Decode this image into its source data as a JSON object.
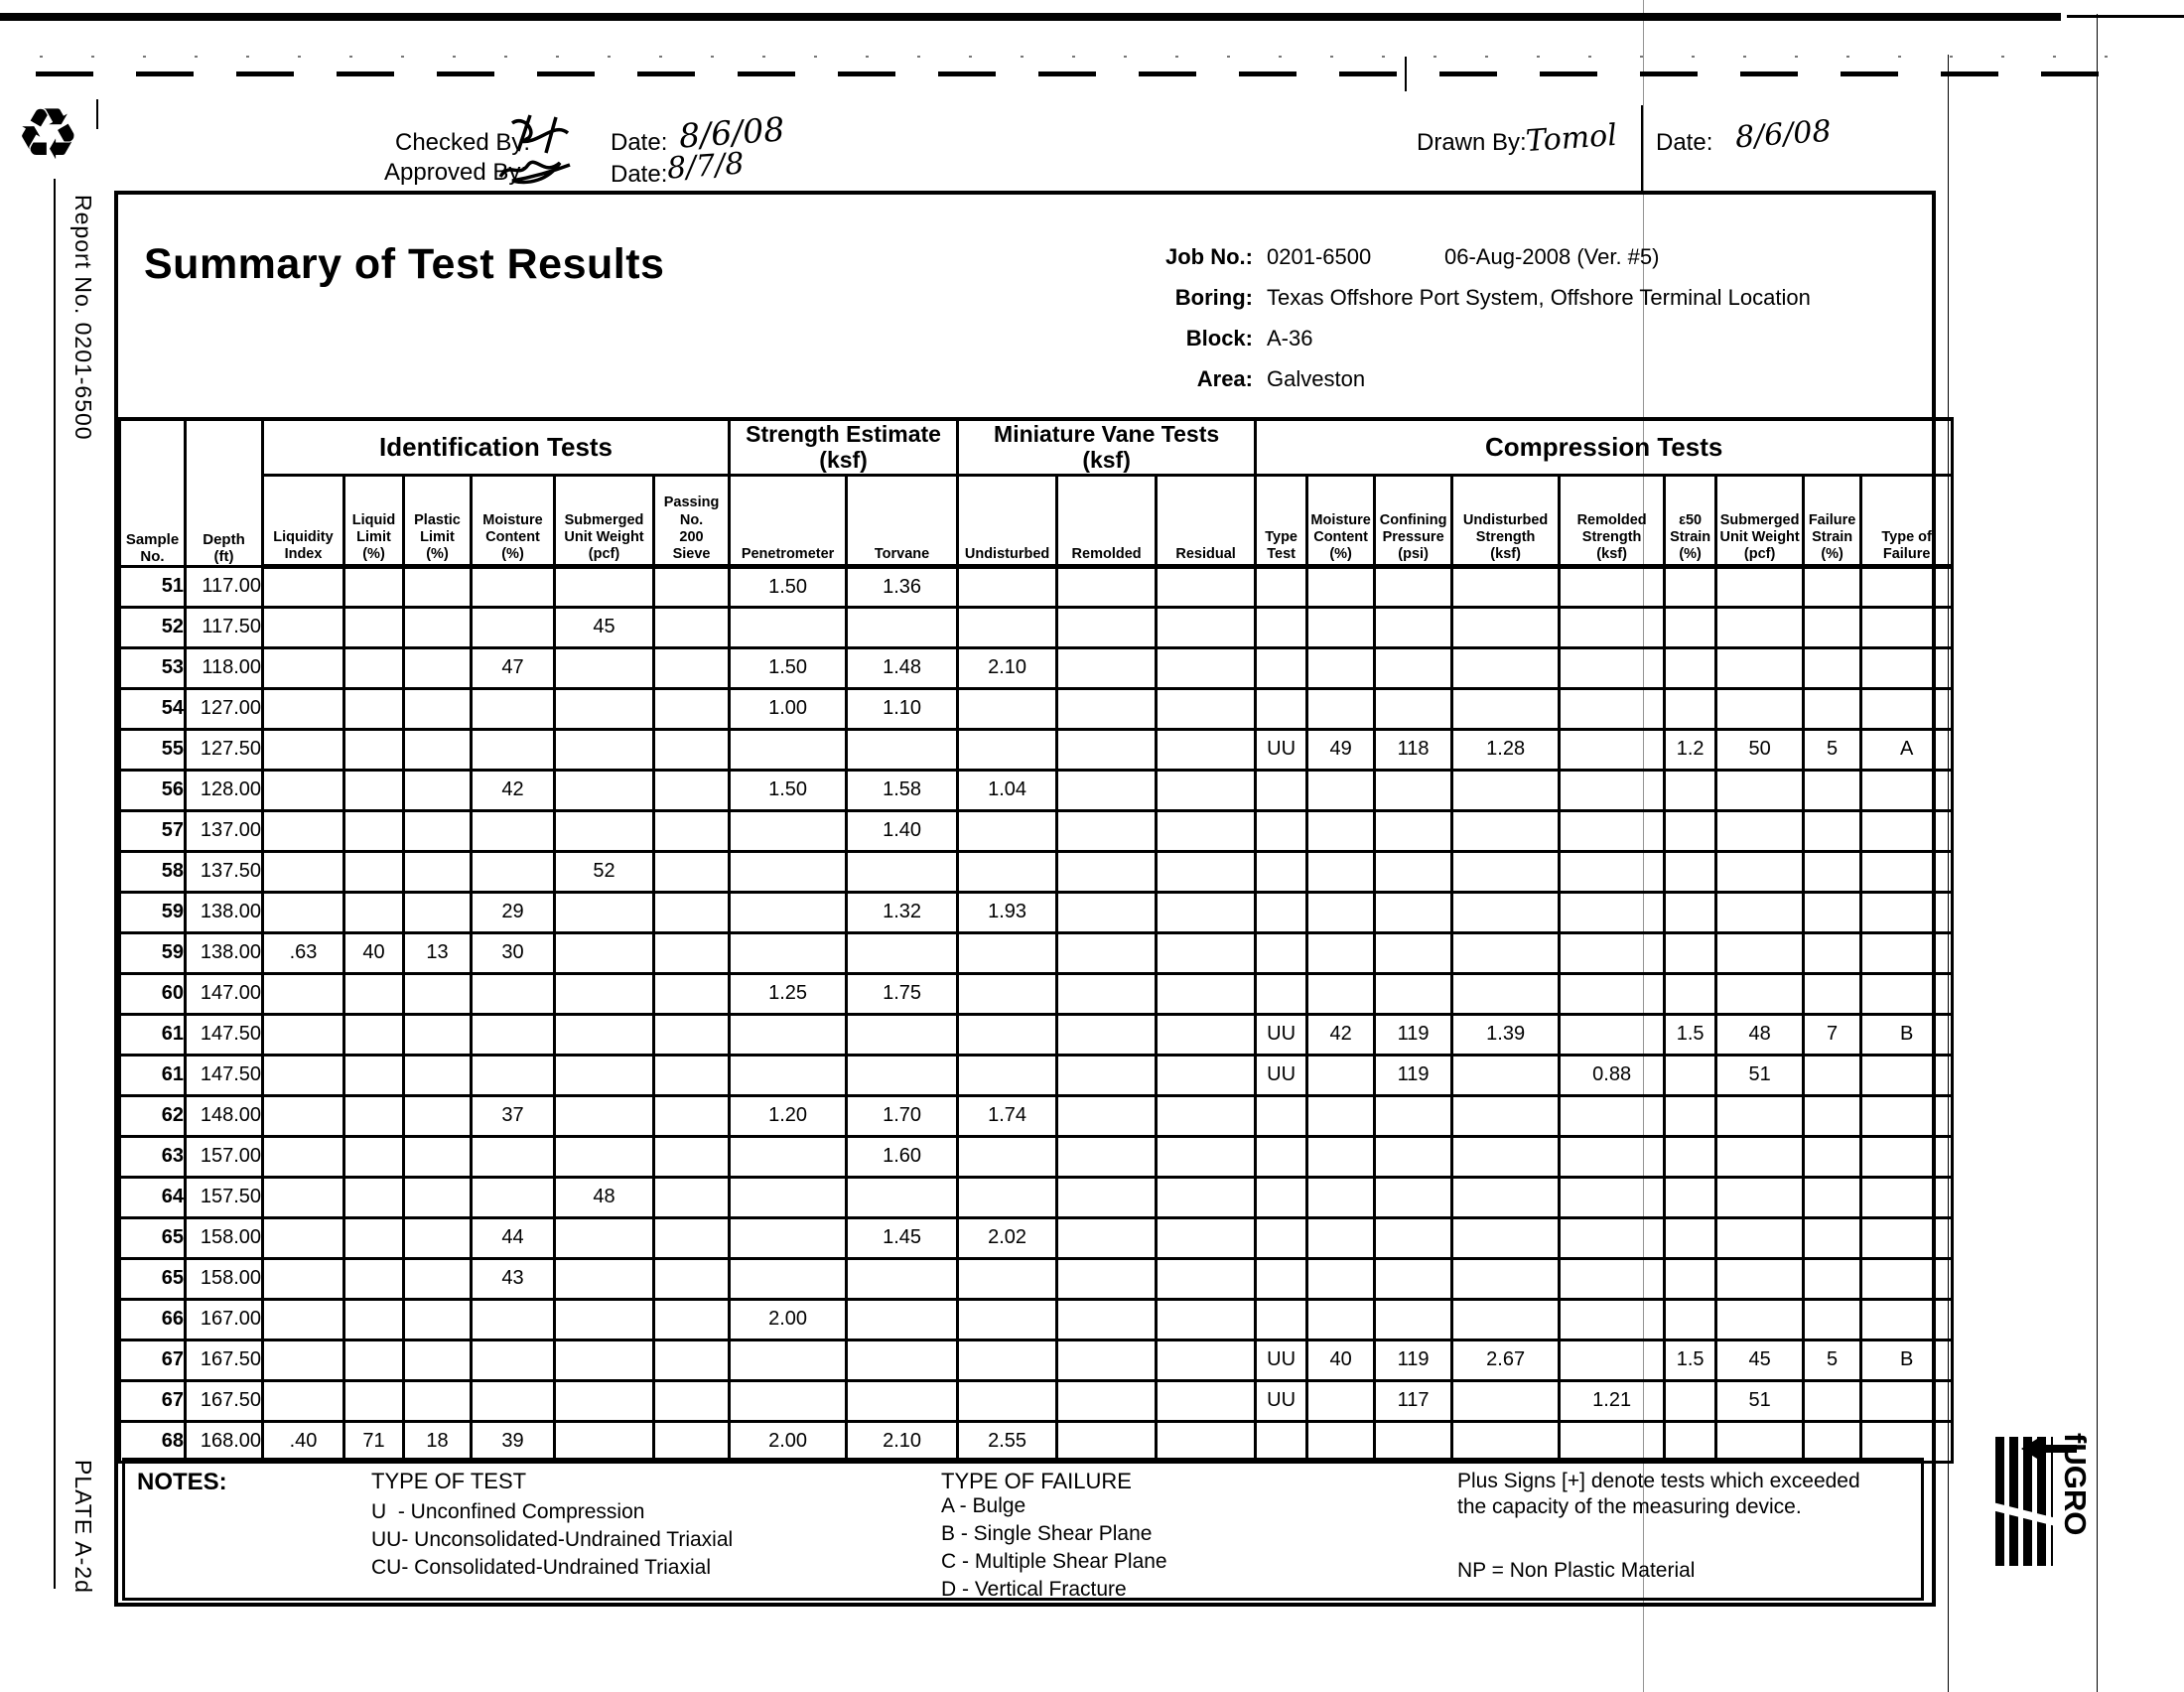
{
  "icons": {
    "recycle": "♻"
  },
  "page": {
    "report_no": "Report No. 0201-6500",
    "plate": "PLATE A-2d"
  },
  "topbar": {
    "checked_by_label": "Checked By:",
    "checked_date_label": "Date:",
    "checked_date": "8/6/08",
    "approved_by_label": "Approved  By:",
    "approved_date_label": "Date:",
    "approved_date": "8/7/8",
    "drawn_by_label": "Drawn By:",
    "drawn_by": "Tomol",
    "drawn_date_label": "Date:",
    "drawn_date": "8/6/08"
  },
  "header": {
    "title": "Summary of Test Results",
    "job_no_label": "Job No.:",
    "job_no": "0201-6500",
    "date_version": "06-Aug-2008  (Ver. #5)",
    "boring_label": "Boring:",
    "boring": "Texas Offshore Port System, Offshore Terminal Location",
    "block_label": "Block:",
    "block": "A-36",
    "area_label": "Area:",
    "area": "Galveston"
  },
  "table": {
    "sample_header": "Sample\nNo.",
    "depth_header": "Depth\n(ft)",
    "group_identification": "Identification Tests",
    "group_strength": "Strength Estimate\n(ksf)",
    "group_vane": "Miniature Vane Tests\n(ksf)",
    "group_compression": "Compression Tests",
    "sub_headers": [
      "Liquidity\nIndex",
      "Liquid\nLimit\n(%)",
      "Plastic\nLimit\n(%)",
      "Moisture\nContent\n(%)",
      "Submerged\nUnit Weight\n(pcf)",
      "Passing\nNo.\n200\nSieve",
      "Penetrometer",
      "Torvane",
      "Undisturbed",
      "Remolded",
      "Residual",
      "Type\nTest",
      "Moisture\nContent\n(%)",
      "Confining\nPressure\n(psi)",
      "Undisturbed\nStrength\n(ksf)",
      "Remolded\nStrength\n(ksf)",
      "ε50\nStrain\n(%)",
      "Submerged\nUnit Weight\n(pcf)",
      "Failure\nStrain\n(%)",
      "Type of\nFailure"
    ],
    "rows": [
      [
        "51",
        "117.00",
        "",
        "",
        "",
        "",
        "",
        "",
        "1.50",
        "1.36",
        "",
        "",
        "",
        "",
        "",
        "",
        "",
        "",
        "",
        "",
        "",
        ""
      ],
      [
        "52",
        "117.50",
        "",
        "",
        "",
        "",
        "45",
        "",
        "",
        "",
        "",
        "",
        "",
        "",
        "",
        "",
        "",
        "",
        "",
        "",
        "",
        ""
      ],
      [
        "53",
        "118.00",
        "",
        "",
        "",
        "47",
        "",
        "",
        "1.50",
        "1.48",
        "2.10",
        "",
        "",
        "",
        "",
        "",
        "",
        "",
        "",
        "",
        "",
        ""
      ],
      [
        "54",
        "127.00",
        "",
        "",
        "",
        "",
        "",
        "",
        "1.00",
        "1.10",
        "",
        "",
        "",
        "",
        "",
        "",
        "",
        "",
        "",
        "",
        "",
        ""
      ],
      [
        "55",
        "127.50",
        "",
        "",
        "",
        "",
        "",
        "",
        "",
        "",
        "",
        "",
        "",
        "UU",
        "49",
        "118",
        "1.28",
        "",
        "1.2",
        "50",
        "5",
        "A"
      ],
      [
        "56",
        "128.00",
        "",
        "",
        "",
        "42",
        "",
        "",
        "1.50",
        "1.58",
        "1.04",
        "",
        "",
        "",
        "",
        "",
        "",
        "",
        "",
        "",
        "",
        ""
      ],
      [
        "57",
        "137.00",
        "",
        "",
        "",
        "",
        "",
        "",
        "",
        "1.40",
        "",
        "",
        "",
        "",
        "",
        "",
        "",
        "",
        "",
        "",
        "",
        ""
      ],
      [
        "58",
        "137.50",
        "",
        "",
        "",
        "",
        "52",
        "",
        "",
        "",
        "",
        "",
        "",
        "",
        "",
        "",
        "",
        "",
        "",
        "",
        "",
        ""
      ],
      [
        "59",
        "138.00",
        "",
        "",
        "",
        "29",
        "",
        "",
        "",
        "1.32",
        "1.93",
        "",
        "",
        "",
        "",
        "",
        "",
        "",
        "",
        "",
        "",
        ""
      ],
      [
        "59",
        "138.00",
        ".63",
        "40",
        "13",
        "30",
        "",
        "",
        "",
        "",
        "",
        "",
        "",
        "",
        "",
        "",
        "",
        "",
        "",
        "",
        "",
        ""
      ],
      [
        "60",
        "147.00",
        "",
        "",
        "",
        "",
        "",
        "",
        "1.25",
        "1.75",
        "",
        "",
        "",
        "",
        "",
        "",
        "",
        "",
        "",
        "",
        "",
        ""
      ],
      [
        "61",
        "147.50",
        "",
        "",
        "",
        "",
        "",
        "",
        "",
        "",
        "",
        "",
        "",
        "UU",
        "42",
        "119",
        "1.39",
        "",
        "1.5",
        "48",
        "7",
        "B"
      ],
      [
        "61",
        "147.50",
        "",
        "",
        "",
        "",
        "",
        "",
        "",
        "",
        "",
        "",
        "",
        "UU",
        "",
        "119",
        "",
        "0.88",
        "",
        "51",
        "",
        ""
      ],
      [
        "62",
        "148.00",
        "",
        "",
        "",
        "37",
        "",
        "",
        "1.20",
        "1.70",
        "1.74",
        "",
        "",
        "",
        "",
        "",
        "",
        "",
        "",
        "",
        "",
        ""
      ],
      [
        "63",
        "157.00",
        "",
        "",
        "",
        "",
        "",
        "",
        "",
        "1.60",
        "",
        "",
        "",
        "",
        "",
        "",
        "",
        "",
        "",
        "",
        "",
        ""
      ],
      [
        "64",
        "157.50",
        "",
        "",
        "",
        "",
        "48",
        "",
        "",
        "",
        "",
        "",
        "",
        "",
        "",
        "",
        "",
        "",
        "",
        "",
        "",
        ""
      ],
      [
        "65",
        "158.00",
        "",
        "",
        "",
        "44",
        "",
        "",
        "",
        "1.45",
        "2.02",
        "",
        "",
        "",
        "",
        "",
        "",
        "",
        "",
        "",
        "",
        ""
      ],
      [
        "65",
        "158.00",
        "",
        "",
        "",
        "43",
        "",
        "",
        "",
        "",
        "",
        "",
        "",
        "",
        "",
        "",
        "",
        "",
        "",
        "",
        "",
        ""
      ],
      [
        "66",
        "167.00",
        "",
        "",
        "",
        "",
        "",
        "",
        "2.00",
        "",
        "",
        "",
        "",
        "",
        "",
        "",
        "",
        "",
        "",
        "",
        "",
        ""
      ],
      [
        "67",
        "167.50",
        "",
        "",
        "",
        "",
        "",
        "",
        "",
        "",
        "",
        "",
        "",
        "UU",
        "40",
        "119",
        "2.67",
        "",
        "1.5",
        "45",
        "5",
        "B"
      ],
      [
        "67",
        "167.50",
        "",
        "",
        "",
        "",
        "",
        "",
        "",
        "",
        "",
        "",
        "",
        "UU",
        "",
        "117",
        "",
        "1.21",
        "",
        "51",
        "",
        ""
      ],
      [
        "68",
        "168.00",
        ".40",
        "71",
        "18",
        "39",
        "",
        "",
        "2.00",
        "2.10",
        "2.55",
        "",
        "",
        "",
        "",
        "",
        "",
        "",
        "",
        "",
        "",
        ""
      ]
    ]
  },
  "notes": {
    "heading": "NOTES:",
    "type_of_test_heading": "TYPE OF TEST",
    "type_of_test_items": [
      "U  - Unconfined Compression",
      "UU- Unconsolidated-Undrained Triaxial",
      "CU- Consolidated-Undrained Triaxial"
    ],
    "type_of_failure_heading": "TYPE OF FAILURE",
    "type_of_failure_items": [
      "A - Bulge",
      "B - Single Shear Plane",
      "C - Multiple Shear Plane",
      "D - Vertical Fracture"
    ],
    "plus_note": "Plus Signs [+] denote tests which exceeded the capacity of the measuring device.",
    "np_note": "NP = Non Plastic Material"
  },
  "logo": {
    "brand": "fUGRO"
  }
}
